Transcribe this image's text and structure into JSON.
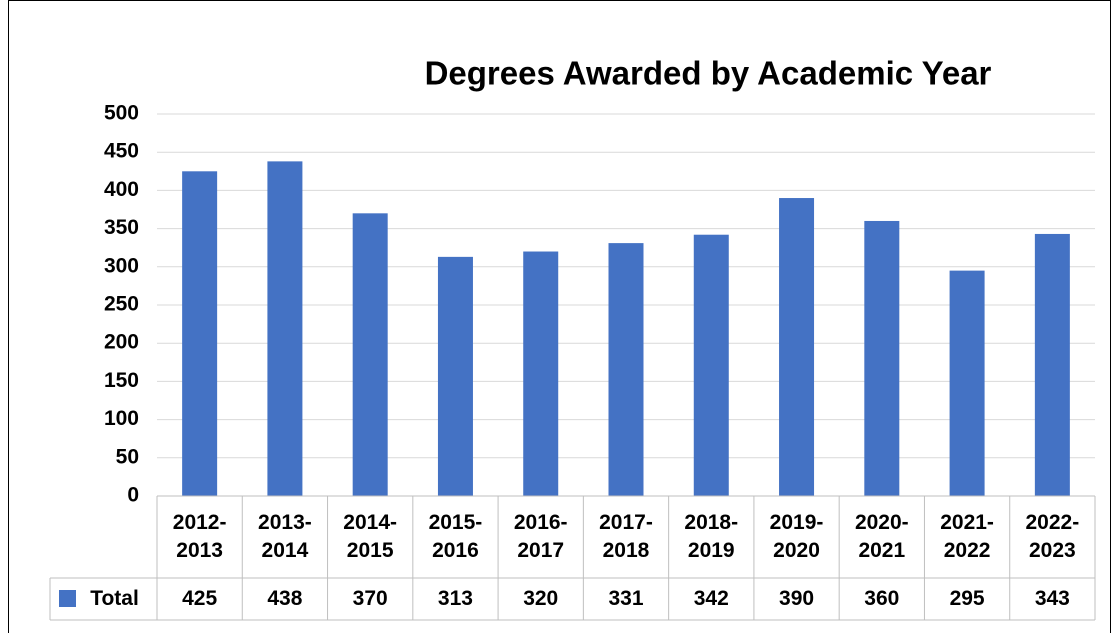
{
  "chart_data": {
    "type": "bar",
    "title": "Degrees Awarded by Academic Year",
    "categories": [
      "2012-2013",
      "2013-2014",
      "2014-2015",
      "2015-2016",
      "2016-2017",
      "2017-2018",
      "2018-2019",
      "2019-2020",
      "2020-2021",
      "2021-2022",
      "2022-2023"
    ],
    "series": [
      {
        "name": "Total",
        "color": "#4472c4",
        "values": [
          425,
          438,
          370,
          313,
          320,
          331,
          342,
          390,
          360,
          295,
          343
        ]
      }
    ],
    "ylim": [
      0,
      500
    ],
    "yticks": [
      0,
      50,
      100,
      150,
      200,
      250,
      300,
      350,
      400,
      450,
      500
    ],
    "grid": true
  }
}
